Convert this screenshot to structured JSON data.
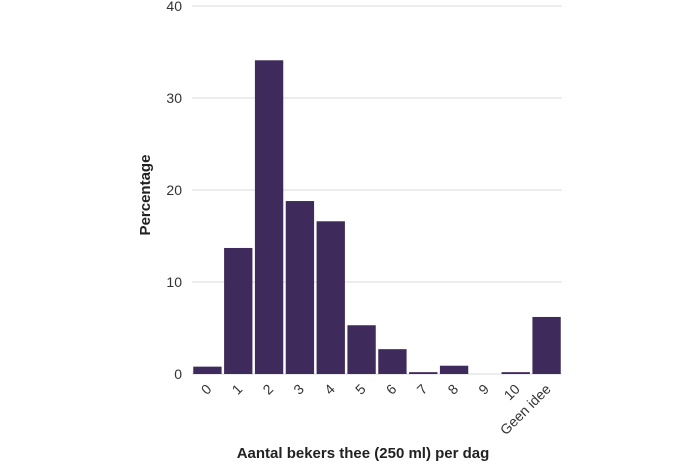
{
  "chart_data": {
    "type": "bar",
    "title": "",
    "xlabel": "Aantal bekers thee (250 ml) per dag",
    "ylabel": "Percentage",
    "ylim": [
      0,
      40
    ],
    "yticks": [
      "0",
      "10",
      "20",
      "30",
      "40"
    ],
    "grid": true,
    "categories": [
      "0",
      "1",
      "2",
      "3",
      "4",
      "5",
      "6",
      "7",
      "8",
      "9",
      "10",
      "Geen idee"
    ],
    "values": [
      0.8,
      13.7,
      34.1,
      18.8,
      16.6,
      5.3,
      2.7,
      0.2,
      0.9,
      0.0,
      0.2,
      6.2
    ],
    "bar_color": "#3f2a5c"
  }
}
